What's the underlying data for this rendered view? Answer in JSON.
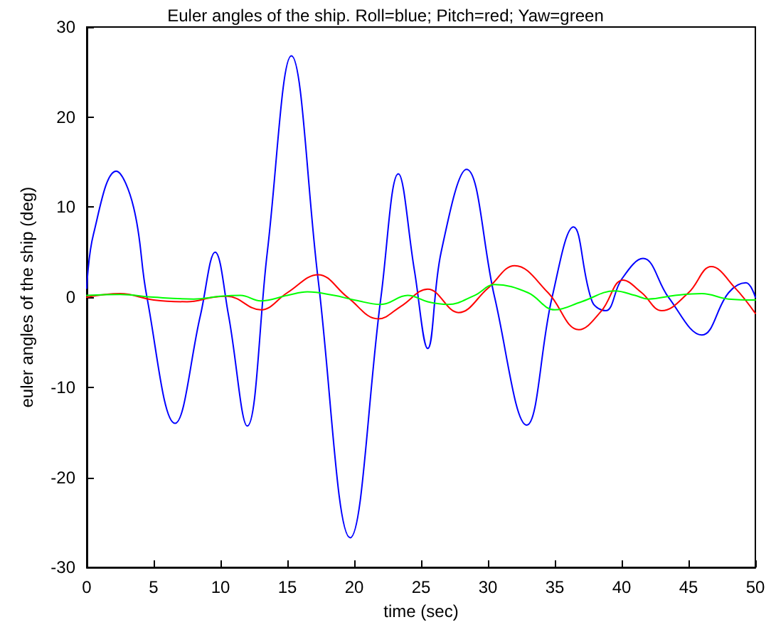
{
  "chart_data": {
    "type": "line",
    "title": "Euler angles of the ship. Roll=blue; Pitch=red; Yaw=green",
    "xlabel": "time (sec)",
    "ylabel": "euler angles of the ship (deg)",
    "xlim": [
      0,
      50
    ],
    "xticks": [
      0,
      5,
      10,
      15,
      20,
      25,
      30,
      35,
      40,
      45,
      50
    ],
    "ylim": [
      -30,
      30
    ],
    "yticks": [
      -30,
      -20,
      -10,
      0,
      10,
      20,
      30
    ],
    "grid": false,
    "marker": "none",
    "line_style": "solid",
    "series": [
      {
        "color": "#0000ff",
        "x": [
          0,
          0.5,
          2.2,
          3.5,
          4.5,
          6.6,
          8.5,
          9.6,
          10.6,
          12,
          13.5,
          15.3,
          17.3,
          19.7,
          22,
          23.3,
          24.5,
          25.5,
          26.5,
          28.4,
          30.5,
          32.9,
          34.8,
          36.4,
          37.8,
          38.8,
          40,
          41.6,
          43.5,
          46,
          48,
          49.3,
          50
        ],
        "values": [
          1,
          7,
          14,
          10,
          0,
          -14,
          -2,
          5,
          -2,
          -14.3,
          5,
          26.8,
          2,
          -26.7,
          0,
          13.7,
          3,
          -5.7,
          5,
          14.2,
          0,
          -14.2,
          0,
          7.8,
          -0.5,
          -1.5,
          2,
          4.3,
          0,
          -4.2,
          0.5,
          1.6,
          0
        ]
      },
      {
        "color": "#ff0000",
        "x": [
          0,
          2.5,
          5,
          7.5,
          9.5,
          10.5,
          13,
          15,
          17.3,
          19.5,
          21.8,
          23.5,
          25.5,
          27.8,
          30,
          32,
          34.5,
          36.8,
          38.5,
          40.1,
          41.5,
          43,
          45,
          46.7,
          48.5,
          50
        ],
        "values": [
          0,
          0.4,
          -0.3,
          -0.5,
          0,
          0.1,
          -1.4,
          0.5,
          2.5,
          0,
          -2.4,
          -1,
          0.9,
          -1.7,
          1,
          3.5,
          0.5,
          -3.6,
          -1.5,
          1.9,
          0.5,
          -1.5,
          0.5,
          3.4,
          1,
          -1.8
        ]
      },
      {
        "color": "#00ff00",
        "x": [
          0,
          2.5,
          5,
          8,
          10,
          11.5,
          13,
          15,
          16.5,
          18.5,
          20,
          22,
          24,
          25.5,
          27,
          29,
          30.5,
          33,
          35,
          37,
          39.5,
          41,
          42,
          44,
          46,
          48,
          50
        ],
        "values": [
          0.2,
          0.3,
          0,
          -0.2,
          0.1,
          0.2,
          -0.4,
          0.2,
          0.6,
          0.2,
          -0.3,
          -0.8,
          0.2,
          -0.5,
          -0.8,
          0.2,
          1.4,
          0.5,
          -1.4,
          -0.5,
          0.7,
          0.2,
          -0.2,
          0.2,
          0.4,
          -0.2,
          -0.3
        ]
      }
    ]
  }
}
